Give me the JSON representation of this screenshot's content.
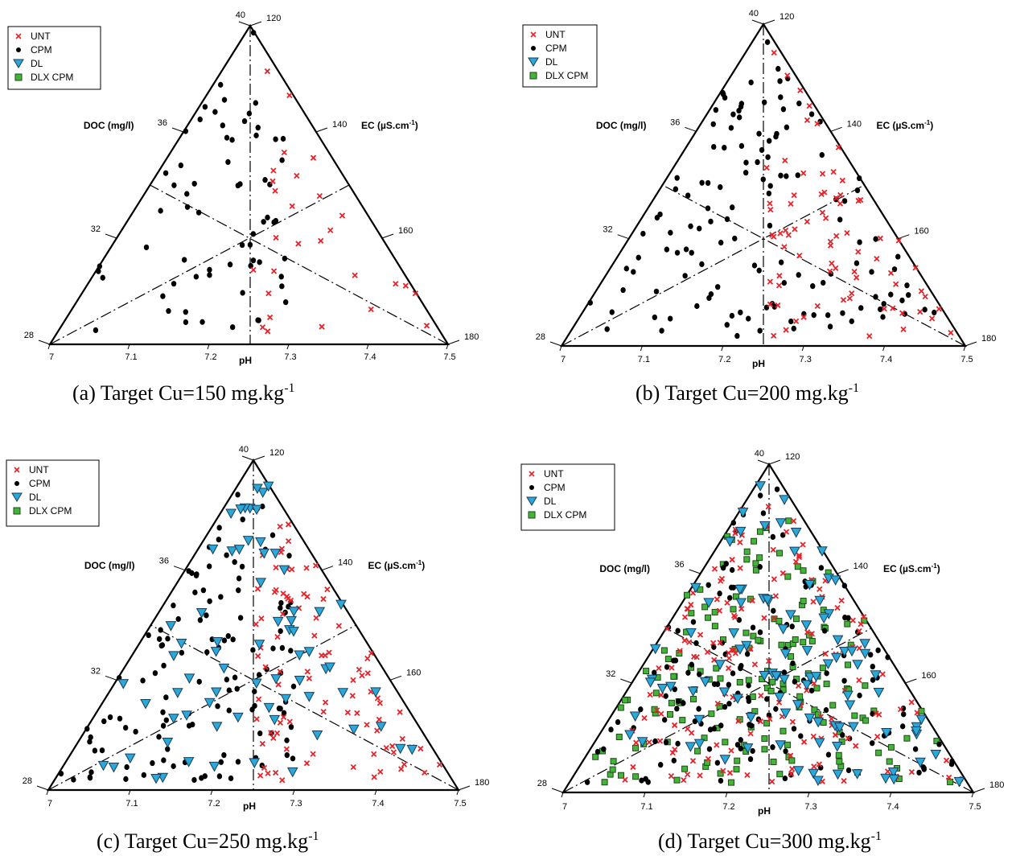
{
  "chart_data": [
    {
      "type": "scatter",
      "title": "(a) Target Cu=150 mg.kg",
      "title_sup": "-1",
      "axes": {
        "doc": {
          "label": "DOC (mg/l)",
          "ticks": [
            "28",
            "32",
            "36",
            "40"
          ]
        },
        "ec": {
          "label": "EC (µS.cm",
          "label_sup": "-1",
          "label_close": ")",
          "ticks": [
            "120",
            "140",
            "160",
            "180"
          ]
        },
        "ph": {
          "label": "pH",
          "ticks": [
            "7",
            "7.1",
            "7.2",
            "7.3",
            "7.4",
            "7.5"
          ]
        }
      },
      "legend": {
        "placement": "top-left",
        "entries": [
          "UNT",
          "CPM",
          "DL",
          "DLX CPM"
        ]
      },
      "series_counts": {
        "UNT": 28,
        "CPM": 65,
        "DL": 0,
        "DLX CPM": 0
      }
    },
    {
      "type": "scatter",
      "title": "(b) Target Cu=200 mg.kg",
      "title_sup": "-1",
      "axes": {
        "doc": {
          "label": "DOC (mg/l)",
          "ticks": [
            "28",
            "32",
            "36",
            "40"
          ]
        },
        "ec": {
          "label": "EC (µS.cm",
          "label_sup": "-1",
          "label_close": ")",
          "ticks": [
            "120",
            "140",
            "160",
            "180"
          ]
        },
        "ph": {
          "label": "pH",
          "ticks": [
            "7",
            "7.1",
            "7.2",
            "7.3",
            "7.4",
            "7.5"
          ]
        }
      },
      "legend": {
        "placement": "top-left",
        "entries": [
          "UNT",
          "CPM",
          "DL",
          "DLX CPM"
        ]
      },
      "series_counts": {
        "UNT": 75,
        "CPM": 130,
        "DL": 0,
        "DLX CPM": 0
      }
    },
    {
      "type": "scatter",
      "title": "(c) Target Cu=250 mg.kg",
      "title_sup": "-1",
      "axes": {
        "doc": {
          "label": "DOC (mg/l)",
          "ticks": [
            "28",
            "32",
            "36",
            "40"
          ]
        },
        "ec": {
          "label": "EC (µS.cm",
          "label_sup": "-1",
          "label_close": ")",
          "ticks": [
            "120",
            "140",
            "160",
            "180"
          ]
        },
        "ph": {
          "label": "pH",
          "ticks": [
            "7",
            "7.1",
            "7.2",
            "7.3",
            "7.4",
            "7.5"
          ]
        }
      },
      "legend": {
        "placement": "top-left",
        "entries": [
          "UNT",
          "CPM",
          "DL",
          "DLX CPM"
        ]
      },
      "series_counts": {
        "UNT": 90,
        "CPM": 120,
        "DL": 70,
        "DLX CPM": 0
      }
    },
    {
      "type": "scatter",
      "title": "(d) Target Cu=300 mg.kg",
      "title_sup": "-1",
      "axes": {
        "doc": {
          "label": "DOC (mg/l)",
          "ticks": [
            "28",
            "32",
            "36",
            "40"
          ]
        },
        "ec": {
          "label": "EC (µS.cm",
          "label_sup": "-1",
          "label_close": ")",
          "ticks": [
            "120",
            "140",
            "160",
            "180"
          ]
        },
        "ph": {
          "label": "pH",
          "ticks": [
            "7",
            "7.1",
            "7.2",
            "7.3",
            "7.4",
            "7.5"
          ]
        }
      },
      "legend": {
        "placement": "top-left",
        "entries": [
          "UNT",
          "CPM",
          "DL",
          "DLX CPM"
        ]
      },
      "series_counts": {
        "UNT": 150,
        "CPM": 150,
        "DL": 100,
        "DLX CPM": 170
      }
    }
  ],
  "colors": {
    "UNT": "#e8232a",
    "CPM": "#000000",
    "DL": "#2aa9d8",
    "DLX CPM": "#44b33a"
  }
}
